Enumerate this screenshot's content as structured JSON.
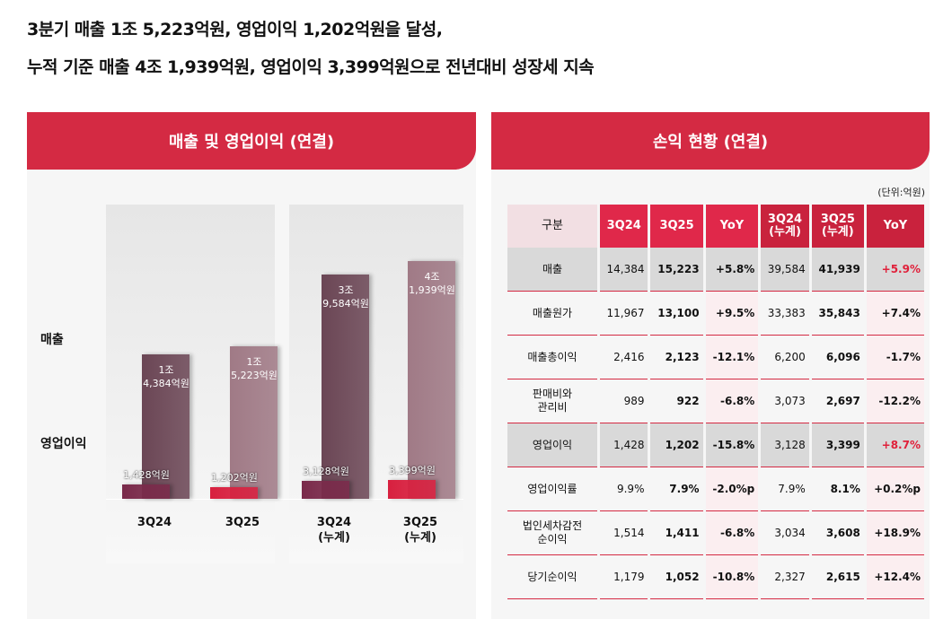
{
  "header": {
    "line1": "3분기 매출 1조 5,223억원, 영업이익 1,202억원을 달성,",
    "line2": "누적 기준 매출 4조 1,939억원, 영업이익 3,399억원으로 전년대비 성장세 지속"
  },
  "chart_data": {
    "type": "bar",
    "title": "매출 및 영업이익 (연결)",
    "categories": [
      "3Q24",
      "3Q25",
      "3Q24\n(누계)",
      "3Q25\n(누계)"
    ],
    "series": [
      {
        "name": "매출",
        "colors": [
          "#6b4655",
          "#a07a86",
          "#6b4655",
          "#a07a86"
        ],
        "values": [
          14384,
          15223,
          39584,
          41939
        ],
        "value_labels": [
          "1조\n4,384억원",
          "1조\n5,223억원",
          "3조\n9,584억원",
          "4조\n1,939억원"
        ]
      },
      {
        "name": "영업이익",
        "colors": [
          "#7a2a4a",
          "#d8203f",
          "#7a2a4a",
          "#d8203f"
        ],
        "values": [
          1428,
          1202,
          3128,
          3399
        ],
        "value_labels": [
          "1,428억원",
          "1,202억원",
          "3,128억원",
          "3,399억원"
        ]
      }
    ]
  },
  "table": {
    "title": "손익 현황 (연결)",
    "unit": "(단위:억원)",
    "header": [
      "구분",
      "3Q24",
      "3Q25",
      "YoY",
      "3Q24\n(누계)",
      "3Q25\n(누계)",
      "YoY"
    ],
    "rows": [
      [
        "매출",
        "14,384",
        "15,223",
        "+5.8%",
        "39,584",
        "41,939",
        "+5.9%"
      ],
      [
        "매출원가",
        "11,967",
        "13,100",
        "+9.5%",
        "33,383",
        "35,843",
        "+7.4%"
      ],
      [
        "매출총이익",
        "2,416",
        "2,123",
        "-12.1%",
        "6,200",
        "6,096",
        "-1.7%"
      ],
      [
        "판매비와\n관리비",
        "989",
        "922",
        "-6.8%",
        "3,073",
        "2,697",
        "-12.2%"
      ],
      [
        "영업이익",
        "1,428",
        "1,202",
        "-15.8%",
        "3,128",
        "3,399",
        "+8.7%"
      ],
      [
        "영업이익률",
        "9.9%",
        "7.9%",
        "-2.0%p",
        "7.9%",
        "8.1%",
        "+0.2%p"
      ],
      [
        "법인세차감전\n순이익",
        "1,514",
        "1,411",
        "-6.8%",
        "3,034",
        "3,608",
        "+18.9%"
      ],
      [
        "당기순이익",
        "1,179",
        "1,052",
        "-10.8%",
        "2,327",
        "2,615",
        "+12.4%"
      ]
    ]
  }
}
